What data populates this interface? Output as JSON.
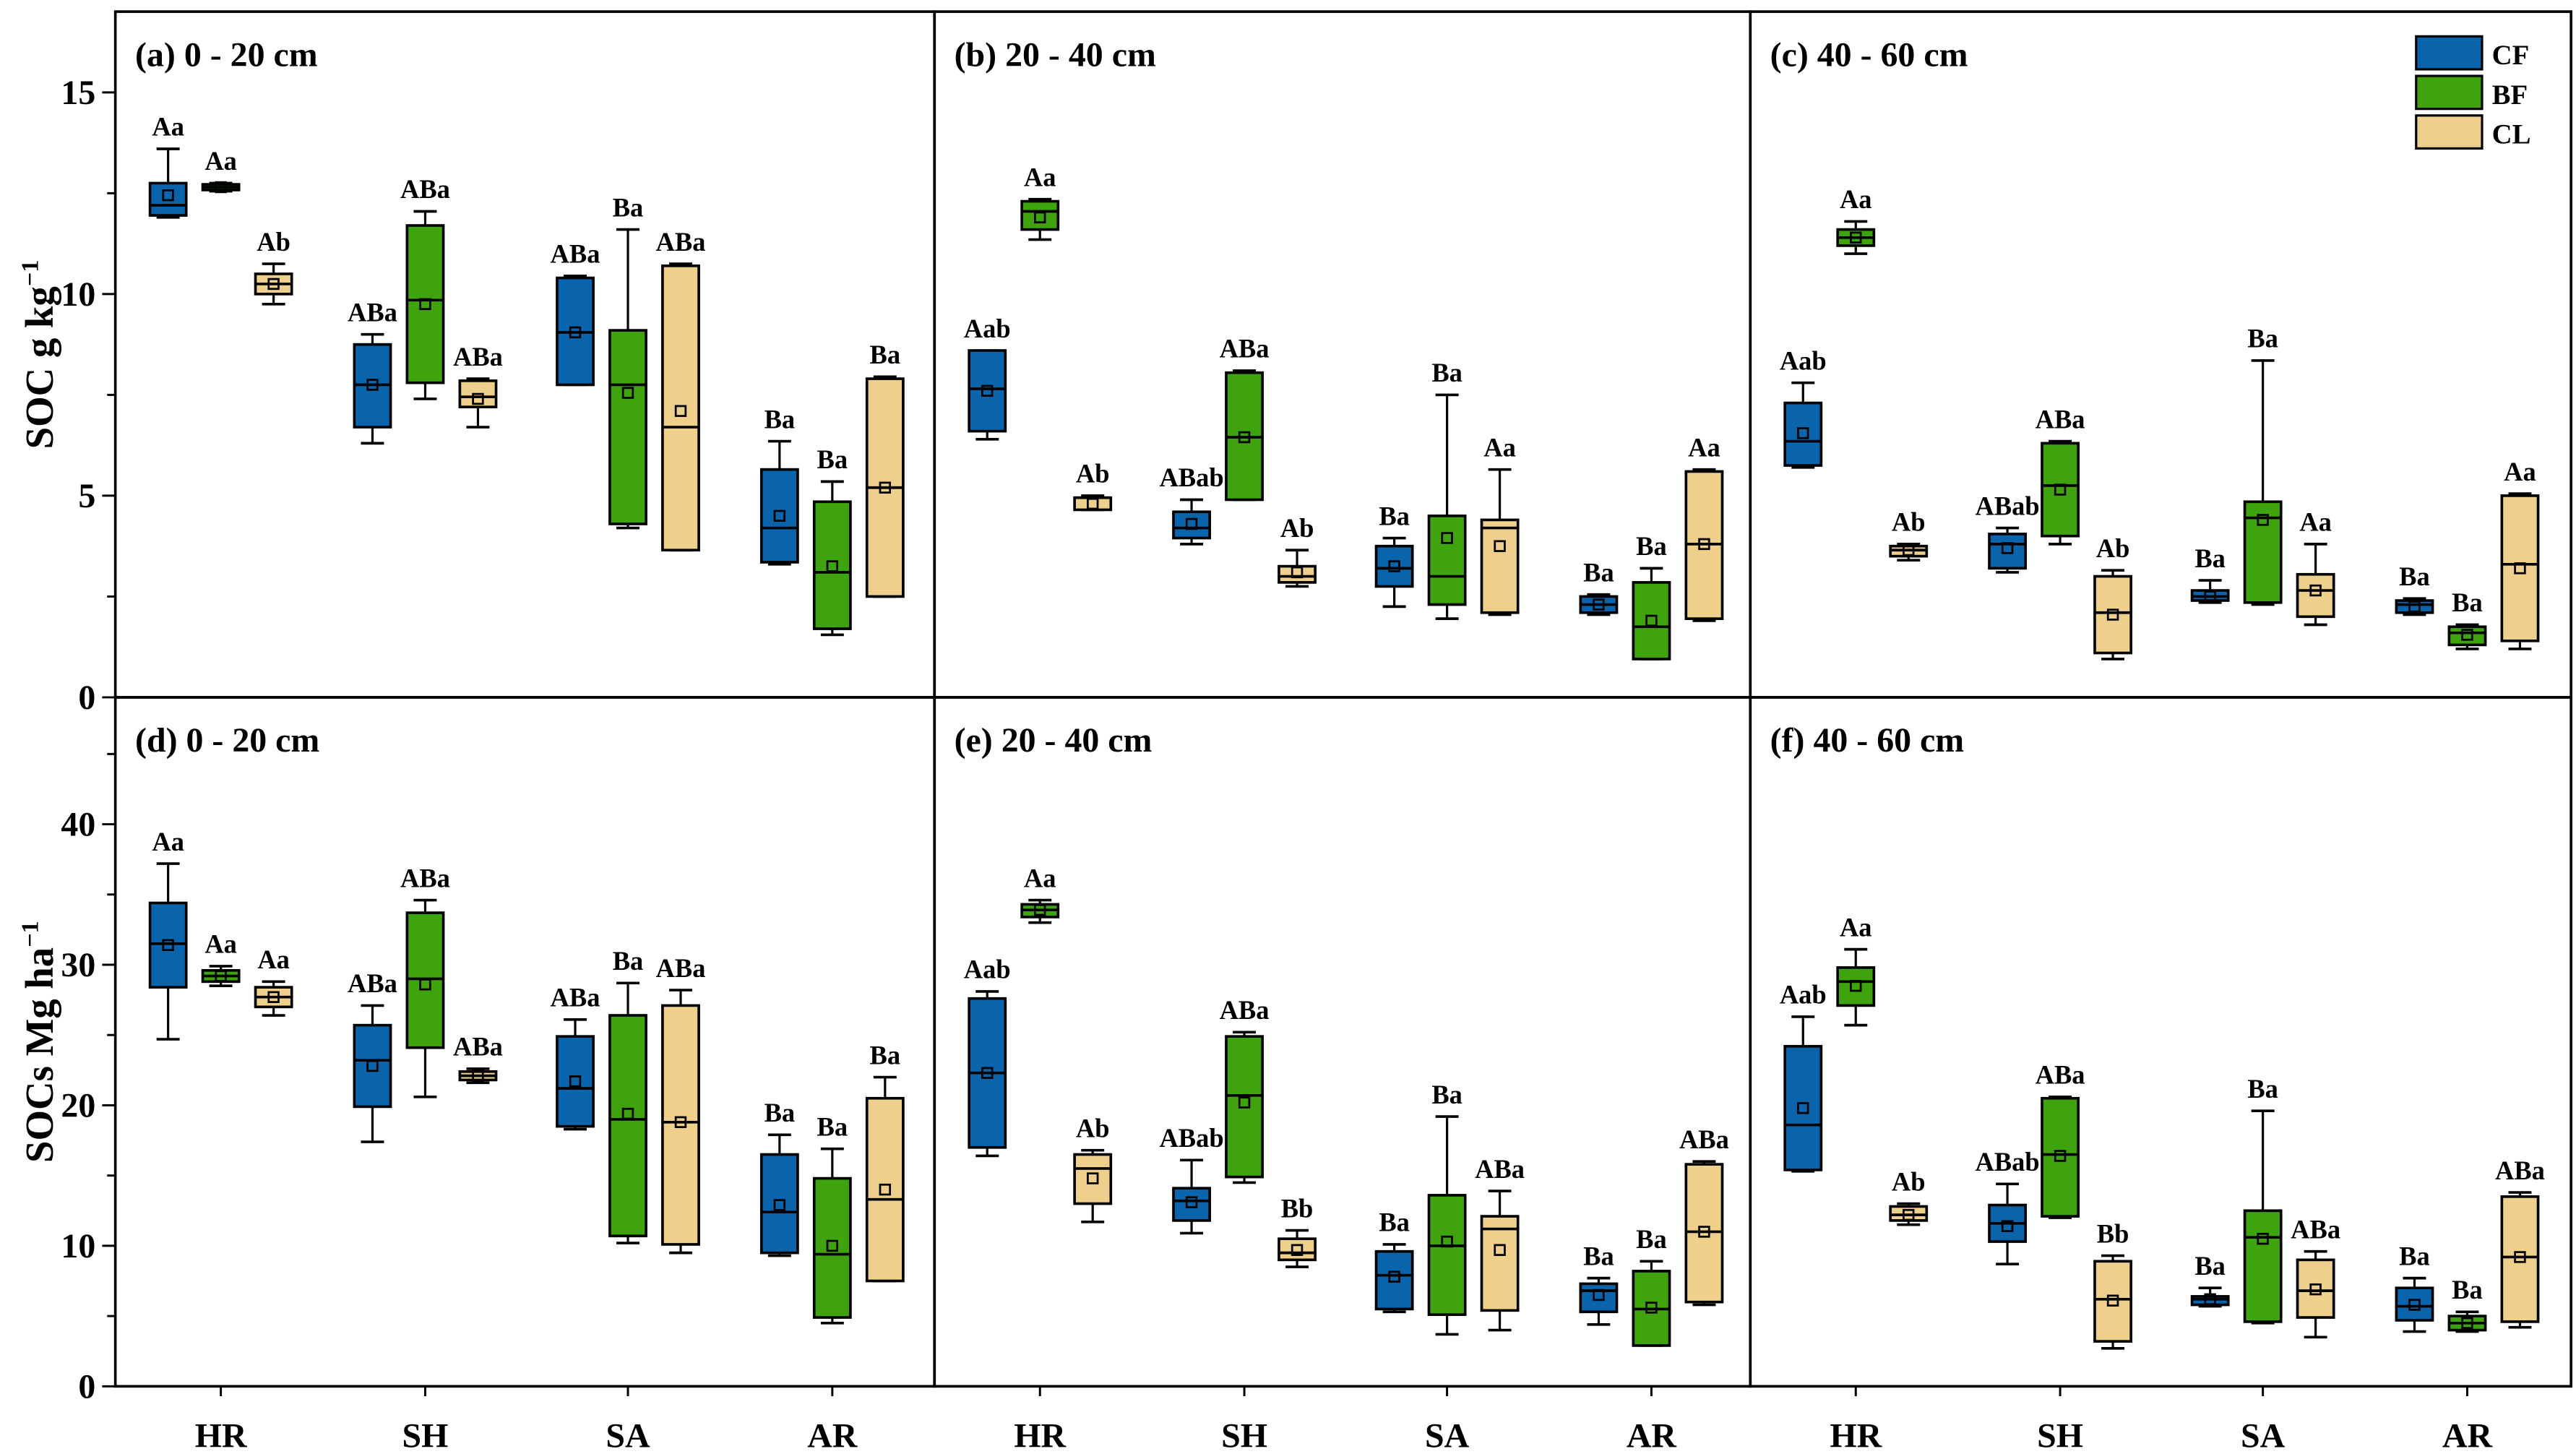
{
  "colors": {
    "CF": "#0a64ab",
    "BF": "#3ea30c",
    "CL": "#eecf8c"
  },
  "legend": [
    "CF",
    "BF",
    "CL"
  ],
  "x_categories": [
    "HR",
    "SH",
    "SA",
    "AR"
  ],
  "y_labels": {
    "top": {
      "main": "SOC g kg",
      "sup": "−1"
    },
    "bottom": {
      "main": "SOCs Mg ha",
      "sup": "−1"
    }
  },
  "chart_data": [
    {
      "type": "box",
      "title": "(a) 0 - 20 cm",
      "ylabel": "SOC g kg−1",
      "ylim": [
        0,
        15
      ],
      "yticks": [
        0,
        5,
        10,
        15
      ],
      "categories": [
        "HR",
        "SH",
        "SA",
        "AR"
      ],
      "series": [
        {
          "name": "CF",
          "boxes": [
            [
              11.9,
              11.95,
              12.2,
              12.75,
              13.6,
              12.45,
              "Aa"
            ],
            [
              6.3,
              6.7,
              7.75,
              8.75,
              9.0,
              7.75,
              "ABa"
            ],
            [
              7.75,
              7.75,
              9.05,
              10.4,
              10.45,
              9.05,
              "ABa"
            ],
            [
              3.3,
              3.35,
              4.2,
              5.65,
              6.35,
              4.5,
              "Ba"
            ]
          ]
        },
        {
          "name": "BF",
          "boxes": [
            [
              12.55,
              12.58,
              12.65,
              12.72,
              12.75,
              12.65,
              "Aa"
            ],
            [
              7.4,
              7.8,
              9.85,
              11.7,
              12.05,
              9.75,
              "ABa"
            ],
            [
              4.2,
              4.3,
              7.75,
              9.1,
              11.6,
              7.55,
              "Ba"
            ],
            [
              1.55,
              1.7,
              3.1,
              4.85,
              5.35,
              3.25,
              "Ba"
            ]
          ]
        },
        {
          "name": "CL",
          "boxes": [
            [
              9.75,
              10.0,
              10.25,
              10.5,
              10.75,
              10.25,
              "Ab"
            ],
            [
              6.7,
              7.2,
              7.45,
              7.85,
              7.9,
              7.4,
              "ABa"
            ],
            [
              3.65,
              3.65,
              6.7,
              10.7,
              10.75,
              7.1,
              "ABa"
            ],
            [
              2.5,
              2.5,
              5.2,
              7.9,
              7.95,
              5.2,
              "Ba"
            ]
          ]
        }
      ]
    },
    {
      "type": "box",
      "title": "(b) 20 - 40 cm",
      "ylim": [
        0,
        15
      ],
      "categories": [
        "HR",
        "SH",
        "SA",
        "AR"
      ],
      "series": [
        {
          "name": "CF",
          "boxes": [
            [
              6.4,
              6.6,
              7.65,
              8.6,
              8.6,
              7.6,
              "Aab"
            ],
            [
              3.8,
              3.95,
              4.2,
              4.6,
              4.9,
              4.3,
              "ABab"
            ],
            [
              2.25,
              2.75,
              3.2,
              3.75,
              3.95,
              3.25,
              "Ba"
            ],
            [
              2.05,
              2.1,
              2.3,
              2.5,
              2.55,
              2.3,
              "Ba"
            ]
          ]
        },
        {
          "name": "BF",
          "boxes": [
            [
              11.35,
              11.6,
              12.05,
              12.3,
              12.35,
              11.9,
              "Aa"
            ],
            [
              4.9,
              4.9,
              6.45,
              8.05,
              8.1,
              6.45,
              "ABa"
            ],
            [
              1.95,
              2.3,
              3.0,
              4.5,
              7.5,
              3.95,
              "Ba"
            ],
            [
              0.95,
              0.95,
              1.75,
              2.85,
              3.2,
              1.9,
              "Ba"
            ]
          ]
        },
        {
          "name": "CL",
          "boxes": [
            [
              4.65,
              4.65,
              4.95,
              4.95,
              5.0,
              4.8,
              "Ab"
            ],
            [
              2.75,
              2.85,
              3.0,
              3.25,
              3.65,
              3.1,
              "Ab"
            ],
            [
              2.05,
              2.1,
              4.2,
              4.4,
              5.65,
              3.75,
              "Aa"
            ],
            [
              1.9,
              1.95,
              3.8,
              5.6,
              5.65,
              3.8,
              "Aa"
            ]
          ]
        }
      ]
    },
    {
      "type": "box",
      "title": "(c) 40 - 60 cm",
      "ylim": [
        0,
        15
      ],
      "categories": [
        "HR",
        "SH",
        "SA",
        "AR"
      ],
      "series": [
        {
          "name": "CF",
          "boxes": [
            [
              5.7,
              5.75,
              6.35,
              7.3,
              7.8,
              6.55,
              "Aab"
            ],
            [
              3.1,
              3.2,
              3.8,
              4.05,
              4.2,
              3.7,
              "ABab"
            ],
            [
              2.35,
              2.4,
              2.5,
              2.65,
              2.9,
              2.5,
              "Ba"
            ],
            [
              2.05,
              2.1,
              2.3,
              2.4,
              2.45,
              2.25,
              "Ba"
            ]
          ]
        },
        {
          "name": "BF",
          "boxes": [
            [
              11.0,
              11.2,
              11.4,
              11.6,
              11.8,
              11.4,
              "Aa"
            ],
            [
              3.8,
              4.0,
              5.25,
              6.3,
              6.35,
              5.15,
              "ABa"
            ],
            [
              2.3,
              2.35,
              4.45,
              4.85,
              8.35,
              4.4,
              "Ba"
            ],
            [
              1.2,
              1.3,
              1.6,
              1.75,
              1.8,
              1.55,
              "Ba"
            ]
          ]
        },
        {
          "name": "CL",
          "boxes": [
            [
              3.4,
              3.5,
              3.65,
              3.75,
              3.8,
              3.65,
              "Ab"
            ],
            [
              0.95,
              1.1,
              2.1,
              3.0,
              3.15,
              2.05,
              "Ab"
            ],
            [
              1.8,
              2.0,
              2.65,
              3.05,
              3.8,
              2.65,
              "Aa"
            ],
            [
              1.2,
              1.4,
              3.3,
              5.0,
              5.05,
              3.2,
              "Aa"
            ]
          ]
        }
      ]
    },
    {
      "type": "box",
      "title": "(d) 0 - 20 cm",
      "ylabel": "SOCs Mg ha−1",
      "ylim": [
        0,
        40
      ],
      "yticks": [
        0,
        10,
        20,
        30,
        40
      ],
      "categories": [
        "HR",
        "SH",
        "SA",
        "AR"
      ],
      "series": [
        {
          "name": "CF",
          "boxes": [
            [
              24.7,
              28.4,
              31.5,
              34.4,
              37.2,
              31.4,
              "Aa"
            ],
            [
              17.4,
              19.9,
              23.2,
              25.7,
              27.1,
              22.8,
              "ABa"
            ],
            [
              18.3,
              18.5,
              21.2,
              24.9,
              26.1,
              21.7,
              "ABa"
            ],
            [
              9.3,
              9.5,
              12.4,
              16.5,
              17.9,
              12.9,
              "Ba"
            ]
          ]
        },
        {
          "name": "BF",
          "boxes": [
            [
              28.5,
              28.8,
              29.2,
              29.6,
              29.9,
              29.2,
              "Aa"
            ],
            [
              20.6,
              24.1,
              29.0,
              33.7,
              34.6,
              28.6,
              "ABa"
            ],
            [
              10.2,
              10.7,
              19.0,
              26.4,
              28.7,
              19.4,
              "Ba"
            ],
            [
              4.5,
              4.9,
              9.4,
              14.8,
              16.9,
              10.0,
              "Ba"
            ]
          ]
        },
        {
          "name": "CL",
          "boxes": [
            [
              26.4,
              27.0,
              27.7,
              28.4,
              28.8,
              27.7,
              "Aa"
            ],
            [
              21.6,
              21.8,
              22.1,
              22.4,
              22.6,
              22.1,
              "ABa"
            ],
            [
              9.5,
              10.1,
              18.8,
              27.1,
              28.2,
              18.8,
              "ABa"
            ],
            [
              7.5,
              7.5,
              13.3,
              20.5,
              22.0,
              14.0,
              "Ba"
            ]
          ]
        }
      ]
    },
    {
      "type": "box",
      "title": "(e) 20 - 40 cm",
      "ylim": [
        0,
        40
      ],
      "categories": [
        "HR",
        "SH",
        "SA",
        "AR"
      ],
      "series": [
        {
          "name": "CF",
          "boxes": [
            [
              16.4,
              17.0,
              22.3,
              27.6,
              28.1,
              22.3,
              "Aab"
            ],
            [
              10.9,
              11.8,
              13.2,
              14.1,
              16.1,
              13.1,
              "ABab"
            ],
            [
              5.3,
              5.5,
              7.9,
              9.6,
              10.1,
              7.8,
              "Ba"
            ],
            [
              4.4,
              5.3,
              6.8,
              7.3,
              7.7,
              6.5,
              "Ba"
            ]
          ]
        },
        {
          "name": "BF",
          "boxes": [
            [
              33.0,
              33.4,
              33.9,
              34.3,
              34.6,
              33.9,
              "Aa"
            ],
            [
              14.5,
              14.9,
              20.7,
              24.9,
              25.2,
              20.2,
              "ABa"
            ],
            [
              3.7,
              5.1,
              10.0,
              13.6,
              19.2,
              10.3,
              "Ba"
            ],
            [
              2.9,
              2.9,
              5.5,
              8.2,
              8.9,
              5.6,
              "Ba"
            ]
          ]
        },
        {
          "name": "CL",
          "boxes": [
            [
              11.7,
              13.0,
              15.5,
              16.5,
              16.8,
              14.8,
              "Ab"
            ],
            [
              8.5,
              9.0,
              9.5,
              10.5,
              11.1,
              9.7,
              "Bb"
            ],
            [
              4.0,
              5.4,
              11.2,
              12.1,
              13.9,
              9.7,
              "ABa"
            ],
            [
              5.8,
              6.0,
              11.0,
              15.8,
              16.0,
              11.0,
              "ABa"
            ]
          ]
        }
      ]
    },
    {
      "type": "box",
      "title": "(f) 40 - 60 cm",
      "ylim": [
        0,
        40
      ],
      "categories": [
        "HR",
        "SH",
        "SA",
        "AR"
      ],
      "series": [
        {
          "name": "CF",
          "boxes": [
            [
              15.3,
              15.4,
              18.6,
              24.2,
              26.3,
              19.8,
              "Aab"
            ],
            [
              8.7,
              10.3,
              11.6,
              12.9,
              14.4,
              11.4,
              "ABab"
            ],
            [
              5.7,
              5.8,
              6.2,
              6.4,
              7.0,
              6.2,
              "Ba"
            ],
            [
              3.9,
              4.7,
              5.7,
              7.0,
              7.7,
              5.8,
              "Ba"
            ]
          ]
        },
        {
          "name": "BF",
          "boxes": [
            [
              25.7,
              27.1,
              28.8,
              29.8,
              31.1,
              28.5,
              "Aa"
            ],
            [
              12.0,
              12.1,
              16.5,
              20.5,
              20.6,
              16.4,
              "ABa"
            ],
            [
              4.5,
              4.6,
              10.6,
              12.5,
              19.6,
              10.5,
              "Ba"
            ],
            [
              3.9,
              4.0,
              4.5,
              5.0,
              5.3,
              4.5,
              "Ba"
            ]
          ]
        },
        {
          "name": "CL",
          "boxes": [
            [
              11.5,
              11.8,
              12.2,
              12.8,
              13.0,
              12.2,
              "Ab"
            ],
            [
              2.7,
              3.2,
              6.2,
              8.9,
              9.3,
              6.1,
              "Bb"
            ],
            [
              3.5,
              4.9,
              6.8,
              9.0,
              9.6,
              6.9,
              "ABa"
            ],
            [
              4.2,
              4.6,
              9.2,
              13.5,
              13.8,
              9.2,
              "ABa"
            ]
          ]
        }
      ]
    }
  ]
}
